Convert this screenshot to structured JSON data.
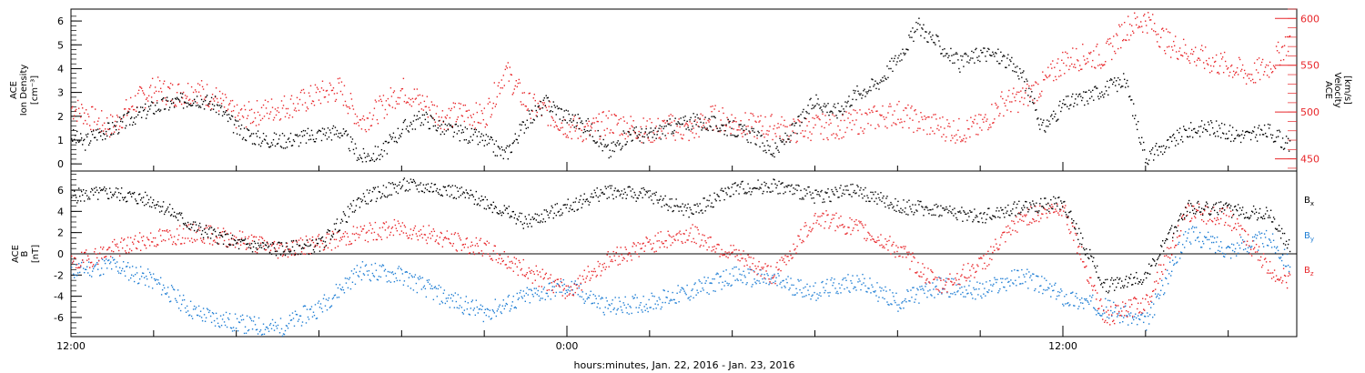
{
  "chart_data": [
    {
      "type": "scatter",
      "panel": "top",
      "left_axis": {
        "label_lines": [
          "ACE",
          "Ion Density",
          "[cm⁻³]"
        ],
        "ylim": [
          -0.3,
          6.5
        ],
        "ticks": [
          0,
          1,
          2,
          3,
          4,
          5,
          6
        ]
      },
      "right_axis": {
        "label_lines": [
          "ACE",
          "Velocity",
          "[km/s]"
        ],
        "ylim": [
          437,
          610
        ],
        "ticks": [
          450,
          500,
          550,
          600
        ],
        "color": "#e8262a"
      },
      "x_hours_since_start_ticks": [
        0,
        12,
        24
      ],
      "series": [
        {
          "color": "#000000",
          "axis": "left",
          "x": [
            0,
            0.3,
            0.6,
            1,
            1.5,
            2,
            2.5,
            3,
            3.5,
            4,
            4.5,
            5,
            5.5,
            6,
            6.5,
            7,
            7.5,
            8,
            8.5,
            9,
            9.5,
            10,
            10.5,
            11,
            11.5,
            12,
            12.5,
            13,
            13.5,
            14,
            14.5,
            15,
            15.5,
            16,
            16.5,
            17,
            17.5,
            18,
            18.5,
            19,
            19.5,
            20,
            20.5,
            21,
            21.5,
            22,
            22.5,
            23,
            23.5,
            24,
            24.5,
            25,
            25.5,
            26,
            26.5,
            27,
            27.5,
            28,
            28.5,
            29,
            29.5
          ],
          "y": [
            1.2,
            0.9,
            1.3,
            1.5,
            2.0,
            2.4,
            2.6,
            2.8,
            2.5,
            1.5,
            1.1,
            1.0,
            1.1,
            1.3,
            1.4,
            0.3,
            0.5,
            1.5,
            2.0,
            1.5,
            1.3,
            1.0,
            0.4,
            1.8,
            2.6,
            2.0,
            1.6,
            0.5,
            1.3,
            1.2,
            1.6,
            1.8,
            1.7,
            1.5,
            1.2,
            0.5,
            1.5,
            2.7,
            2.2,
            3.0,
            3.4,
            4.5,
            5.8,
            5.0,
            4.2,
            4.7,
            4.5,
            3.8,
            1.5,
            2.5,
            2.8,
            3.2,
            3.5,
            0.3,
            0.8,
            1.4,
            1.6,
            1.3,
            1.2,
            1.4,
            0.7
          ]
        },
        {
          "color": "#e8262a",
          "axis": "right",
          "x": [
            0,
            0.3,
            0.6,
            1,
            1.5,
            2,
            2.5,
            3,
            3.5,
            4,
            4.5,
            5,
            5.5,
            6,
            6.5,
            7,
            7.5,
            8,
            8.5,
            9,
            9.5,
            10,
            10.5,
            11,
            11.5,
            12,
            12.5,
            13,
            13.5,
            14,
            14.5,
            15,
            15.5,
            16,
            16.5,
            17,
            17.5,
            18,
            18.5,
            19,
            19.5,
            20,
            20.5,
            21,
            21.5,
            22,
            22.5,
            23,
            23.5,
            24,
            24.5,
            25,
            25.5,
            26,
            26.5,
            27,
            27.5,
            28,
            28.5,
            29,
            29.5
          ],
          "y": [
            505,
            500,
            490,
            485,
            510,
            525,
            520,
            525,
            515,
            495,
            500,
            505,
            510,
            520,
            525,
            490,
            505,
            525,
            510,
            495,
            500,
            495,
            545,
            510,
            500,
            485,
            480,
            490,
            485,
            480,
            485,
            480,
            495,
            490,
            485,
            485,
            480,
            485,
            485,
            490,
            495,
            500,
            490,
            485,
            480,
            485,
            510,
            515,
            530,
            555,
            560,
            560,
            590,
            600,
            575,
            565,
            555,
            550,
            540,
            550,
            580
          ]
        }
      ]
    },
    {
      "type": "scatter",
      "panel": "bottom",
      "left_axis": {
        "label_lines": [
          "ACE",
          "B",
          "[nT]"
        ],
        "ylim": [
          -7.8,
          7.8
        ],
        "ticks": [
          -6,
          -4,
          -2,
          0,
          2,
          4,
          6
        ]
      },
      "zero_line": true,
      "series": [
        {
          "name": "Bx",
          "color": "#000000",
          "x": [
            0,
            1,
            2,
            3,
            4,
            5,
            6,
            7,
            8,
            9,
            10,
            11,
            12,
            13,
            14,
            15,
            16,
            17,
            18,
            19,
            20,
            21,
            22,
            23,
            24,
            25,
            26,
            27,
            28,
            29,
            29.5
          ],
          "y": [
            5.5,
            5.8,
            5.0,
            2.5,
            1.0,
            0.5,
            0.8,
            5.2,
            6.5,
            6.2,
            5.0,
            3.0,
            4.5,
            6.0,
            5.5,
            4.0,
            6.2,
            6.5,
            5.5,
            6.0,
            4.5,
            4.2,
            3.5,
            4.5,
            4.8,
            -3.0,
            -2.0,
            4.5,
            4.2,
            3.8,
            0.5
          ]
        },
        {
          "name": "By",
          "color": "#1f7ed4",
          "x": [
            0,
            1,
            2,
            3,
            4,
            5,
            6,
            7,
            8,
            9,
            10,
            11,
            12,
            13,
            14,
            15,
            16,
            17,
            18,
            19,
            20,
            21,
            22,
            23,
            24,
            25,
            26,
            27,
            28,
            29,
            29.5
          ],
          "y": [
            -1.5,
            -1.0,
            -2.5,
            -5.5,
            -6.5,
            -7.0,
            -5.0,
            -1.5,
            -2.0,
            -4.0,
            -5.5,
            -4.0,
            -3.0,
            -5.0,
            -4.5,
            -3.5,
            -2.0,
            -2.5,
            -3.5,
            -2.5,
            -4.5,
            -3.0,
            -3.5,
            -2.0,
            -4.0,
            -5.0,
            -6.5,
            2.0,
            0.5,
            1.5,
            -1.0
          ]
        },
        {
          "name": "Bz",
          "color": "#e8262a",
          "x": [
            0,
            1,
            2,
            3,
            4,
            5,
            6,
            7,
            8,
            9,
            10,
            11,
            12,
            13,
            14,
            15,
            16,
            17,
            18,
            19,
            20,
            21,
            22,
            23,
            24,
            25,
            26,
            27,
            28,
            29,
            29.5
          ],
          "y": [
            -1.0,
            0.5,
            1.5,
            2.0,
            1.5,
            0.5,
            1.0,
            2.0,
            2.5,
            1.5,
            0.5,
            -1.5,
            -3.5,
            -0.5,
            1.0,
            2.0,
            0.0,
            -2.0,
            3.5,
            2.5,
            0.5,
            -3.0,
            -1.0,
            3.5,
            4.5,
            -6.0,
            -4.5,
            4.0,
            3.5,
            -1.5,
            -2.5
          ]
        }
      ]
    }
  ],
  "x_axis": {
    "tick_labels": [
      "12:00",
      "0:00",
      "12:00"
    ],
    "label": "hours:minutes, Jan. 22, 2016 - Jan. 23, 2016"
  },
  "legend": {
    "bx": {
      "main": "B",
      "sub": "x"
    },
    "by": {
      "main": "B",
      "sub": "y"
    },
    "bz": {
      "main": "B",
      "sub": "z"
    }
  }
}
